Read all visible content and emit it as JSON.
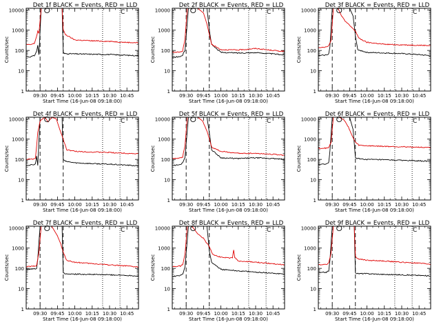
{
  "figure": {
    "xlabel": "Start Time (16-Jun-08 09:18:00)",
    "ylabel": "Counts/sec",
    "x_ticks": [
      "09:30",
      "09:45",
      "10:00",
      "10:15",
      "10:30",
      "10:45"
    ],
    "y_ticks": [
      "1",
      "10",
      "100",
      "1000",
      "10000"
    ],
    "colors": {
      "events": "#000000",
      "lld": "#e00000"
    }
  },
  "chart_data": [
    {
      "type": "line",
      "title": "Det 1f BLACK = Events, RED = LLD",
      "xlabel": "Start Time (16-Jun-08 09:18:00)",
      "ylabel": "Counts/sec",
      "x_range": [
        "09:18",
        "10:55"
      ],
      "y_scale": "log",
      "ylim": [
        1,
        12000
      ],
      "annotations": [
        "O",
        "C"
      ],
      "markers": [
        {
          "time": "09:30",
          "style": "dashed"
        },
        {
          "time": "09:50",
          "style": "dashed"
        },
        {
          "time": "10:24",
          "style": "dotted"
        },
        {
          "time": "10:39",
          "style": "dotted"
        }
      ],
      "series": [
        {
          "name": "Events",
          "x": [
            "09:18",
            "09:21",
            "09:25",
            "09:27",
            "09:28",
            "09:29",
            "09:31",
            "09:35",
            "09:45",
            "09:49",
            "09:50",
            "09:51",
            "10:00",
            "10:15",
            "10:30",
            "10:45",
            "10:55"
          ],
          "values": [
            50,
            48,
            55,
            90,
            180,
            60,
            12000,
            12000,
            12000,
            12000,
            80,
            70,
            68,
            65,
            63,
            58,
            55
          ]
        },
        {
          "name": "LLD",
          "x": [
            "09:18",
            "09:21",
            "09:25",
            "09:27",
            "09:28",
            "09:29",
            "09:31",
            "09:35",
            "09:45",
            "09:49",
            "09:50",
            "09:52",
            "10:00",
            "10:15",
            "10:30",
            "10:45",
            "10:55"
          ],
          "values": [
            200,
            190,
            220,
            500,
            900,
            700,
            12000,
            12000,
            12000,
            12000,
            1000,
            600,
            330,
            300,
            280,
            250,
            240
          ]
        }
      ]
    },
    {
      "type": "line",
      "title": "Det 2f BLACK = Events, RED = LLD",
      "xlabel": "Start Time (16-Jun-08 09:18:00)",
      "ylabel": "Counts/sec",
      "x_range": [
        "09:18",
        "10:55"
      ],
      "y_scale": "log",
      "ylim": [
        1,
        12000
      ],
      "annotations": [
        "O",
        "C"
      ],
      "markers": [
        {
          "time": "09:30",
          "style": "dashed"
        },
        {
          "time": "09:50",
          "style": "dashed"
        },
        {
          "time": "10:24",
          "style": "dotted"
        },
        {
          "time": "10:39",
          "style": "dotted"
        }
      ],
      "series": [
        {
          "name": "Events",
          "x": [
            "09:18",
            "09:25",
            "09:27",
            "09:29",
            "09:32",
            "09:45",
            "09:48",
            "09:50",
            "09:52",
            "10:00",
            "10:15",
            "10:30",
            "10:45",
            "10:55"
          ],
          "values": [
            45,
            50,
            60,
            100,
            12000,
            12000,
            12000,
            1000,
            200,
            80,
            75,
            78,
            68,
            60
          ]
        },
        {
          "name": "LLD",
          "x": [
            "09:18",
            "09:25",
            "09:27",
            "09:29",
            "09:31",
            "09:40",
            "09:45",
            "09:48",
            "09:50",
            "09:52",
            "10:00",
            "10:15",
            "10:30",
            "10:45",
            "10:55"
          ],
          "values": [
            80,
            85,
            90,
            400,
            12000,
            12000,
            7000,
            2000,
            600,
            200,
            110,
            105,
            125,
            100,
            90
          ]
        }
      ]
    },
    {
      "type": "line",
      "title": "Det 3f BLACK = Events, RED = LLD",
      "xlabel": "Start Time (16-Jun-08 09:18:00)",
      "ylabel": "Counts/sec",
      "x_range": [
        "09:18",
        "10:55"
      ],
      "y_scale": "log",
      "ylim": [
        1,
        12000
      ],
      "annotations": [
        "O",
        "C"
      ],
      "markers": [
        {
          "time": "09:30",
          "style": "dashed"
        },
        {
          "time": "09:50",
          "style": "dashed"
        },
        {
          "time": "10:24",
          "style": "dotted"
        },
        {
          "time": "10:39",
          "style": "dotted"
        }
      ],
      "series": [
        {
          "name": "Events",
          "x": [
            "09:18",
            "09:25",
            "09:27",
            "09:28",
            "09:30",
            "09:35",
            "09:45",
            "09:48",
            "09:50",
            "09:52",
            "10:00",
            "10:15",
            "10:30",
            "10:45",
            "10:55"
          ],
          "values": [
            55,
            60,
            70,
            150,
            12000,
            12000,
            12000,
            5000,
            500,
            110,
            80,
            75,
            70,
            62,
            55
          ]
        },
        {
          "name": "LLD",
          "x": [
            "09:18",
            "09:25",
            "09:27",
            "09:29",
            "09:31",
            "09:35",
            "09:38",
            "09:42",
            "09:46",
            "09:50",
            "09:53",
            "10:00",
            "10:15",
            "10:30",
            "10:45",
            "10:55"
          ],
          "values": [
            140,
            150,
            180,
            300,
            12000,
            12000,
            5000,
            2500,
            1500,
            900,
            400,
            250,
            200,
            190,
            180,
            175
          ]
        }
      ]
    },
    {
      "type": "line",
      "title": "Det 4f BLACK = Events, RED = LLD",
      "xlabel": "Start Time (16-Jun-08 09:18:00)",
      "ylabel": "Counts/sec",
      "x_range": [
        "09:18",
        "10:55"
      ],
      "y_scale": "log",
      "ylim": [
        1,
        12000
      ],
      "annotations": [
        "O",
        "C"
      ],
      "markers": [
        {
          "time": "09:30",
          "style": "dashed"
        },
        {
          "time": "09:50",
          "style": "dashed"
        },
        {
          "time": "10:24",
          "style": "dotted"
        },
        {
          "time": "10:39",
          "style": "dotted"
        }
      ],
      "series": [
        {
          "name": "Events",
          "x": [
            "09:18",
            "09:25",
            "09:26",
            "09:27",
            "09:28",
            "09:30",
            "09:45",
            "09:49",
            "09:50",
            "09:52",
            "10:00",
            "10:15",
            "10:30",
            "10:45",
            "10:55"
          ],
          "values": [
            50,
            55,
            60,
            150,
            50,
            12000,
            12000,
            12000,
            100,
            80,
            68,
            62,
            58,
            52,
            48
          ]
        },
        {
          "name": "LLD",
          "x": [
            "09:18",
            "09:24",
            "09:26",
            "09:28",
            "09:30",
            "09:34",
            "09:37",
            "09:40",
            "09:44",
            "09:47",
            "09:50",
            "09:53",
            "10:00",
            "10:15",
            "10:30",
            "10:45",
            "10:55"
          ],
          "values": [
            100,
            105,
            110,
            2000,
            8000,
            12000,
            7000,
            12000,
            10000,
            3000,
            1000,
            300,
            250,
            230,
            220,
            200,
            190
          ]
        }
      ]
    },
    {
      "type": "line",
      "title": "Det 5f BLACK = Events, RED = LLD",
      "xlabel": "Start Time (16-Jun-08 09:18:00)",
      "ylabel": "Counts/sec",
      "x_range": [
        "09:18",
        "10:55"
      ],
      "y_scale": "log",
      "ylim": [
        1,
        12000
      ],
      "annotations": [
        "O",
        "C"
      ],
      "markers": [
        {
          "time": "09:30",
          "style": "dashed"
        },
        {
          "time": "09:50",
          "style": "dashed"
        },
        {
          "time": "10:24",
          "style": "dotted"
        },
        {
          "time": "10:39",
          "style": "dotted"
        }
      ],
      "series": [
        {
          "name": "Events",
          "x": [
            "09:18",
            "09:25",
            "09:27",
            "09:29",
            "09:32",
            "09:45",
            "09:48",
            "09:50",
            "09:52",
            "10:00",
            "10:15",
            "10:30",
            "10:45",
            "10:55"
          ],
          "values": [
            50,
            55,
            70,
            130,
            12000,
            12000,
            12000,
            2000,
            300,
            120,
            110,
            120,
            110,
            100
          ]
        },
        {
          "name": "LLD",
          "x": [
            "09:18",
            "09:25",
            "09:27",
            "09:29",
            "09:31",
            "09:40",
            "09:44",
            "09:48",
            "09:50",
            "09:52",
            "10:00",
            "10:15",
            "10:30",
            "10:45",
            "10:55"
          ],
          "values": [
            110,
            120,
            130,
            500,
            12000,
            12000,
            8000,
            2500,
            1000,
            400,
            250,
            200,
            200,
            180,
            160
          ]
        }
      ]
    },
    {
      "type": "line",
      "title": "Det 6f BLACK = Events, RED = LLD",
      "xlabel": "Start Time (16-Jun-08 09:18:00)",
      "ylabel": "Counts/sec",
      "x_range": [
        "09:18",
        "10:55"
      ],
      "y_scale": "log",
      "ylim": [
        1,
        12000
      ],
      "annotations": [
        "O",
        "C"
      ],
      "markers": [
        {
          "time": "09:30",
          "style": "dashed"
        },
        {
          "time": "09:50",
          "style": "dashed"
        },
        {
          "time": "10:24",
          "style": "dotted"
        },
        {
          "time": "10:39",
          "style": "dotted"
        }
      ],
      "series": [
        {
          "name": "Events",
          "x": [
            "09:18",
            "09:25",
            "09:27",
            "09:28",
            "09:30",
            "09:35",
            "09:45",
            "09:48",
            "09:50",
            "09:52",
            "10:00",
            "10:15",
            "10:30",
            "10:45",
            "10:55"
          ],
          "values": [
            55,
            60,
            70,
            250,
            12000,
            12000,
            12000,
            3000,
            120,
            110,
            100,
            95,
            90,
            85,
            80
          ]
        },
        {
          "name": "LLD",
          "x": [
            "09:18",
            "09:25",
            "09:27",
            "09:29",
            "09:31",
            "09:36",
            "09:40",
            "09:44",
            "09:47",
            "09:50",
            "09:53",
            "10:00",
            "10:15",
            "10:30",
            "10:45",
            "10:55"
          ],
          "values": [
            350,
            360,
            380,
            700,
            12000,
            12000,
            9000,
            4000,
            1500,
            700,
            500,
            470,
            440,
            420,
            400,
            370
          ]
        }
      ]
    },
    {
      "type": "line",
      "title": "Det 7f BLACK = Events, RED = LLD",
      "xlabel": "Start Time (16-Jun-08 09:18:00)",
      "ylabel": "Counts/sec",
      "x_range": [
        "09:18",
        "10:55"
      ],
      "y_scale": "log",
      "ylim": [
        1,
        12000
      ],
      "annotations": [
        "O",
        "C"
      ],
      "markers": [
        {
          "time": "09:30",
          "style": "dashed"
        },
        {
          "time": "09:50",
          "style": "dashed"
        },
        {
          "time": "10:24",
          "style": "dotted"
        },
        {
          "time": "10:39",
          "style": "dotted"
        }
      ],
      "series": [
        {
          "name": "Events",
          "x": [
            "09:18",
            "09:25",
            "09:27",
            "09:28",
            "09:30",
            "09:45",
            "09:49",
            "09:50",
            "09:52",
            "10:00",
            "10:15",
            "10:30",
            "10:45",
            "10:55"
          ],
          "values": [
            90,
            95,
            100,
            300,
            12000,
            12000,
            12000,
            60,
            55,
            52,
            50,
            48,
            45,
            42
          ]
        },
        {
          "name": "LLD",
          "x": [
            "09:18",
            "09:24",
            "09:27",
            "09:29",
            "09:31",
            "09:40",
            "09:45",
            "09:48",
            "09:50",
            "09:53",
            "10:00",
            "10:15",
            "10:30",
            "10:45",
            "10:55"
          ],
          "values": [
            120,
            125,
            140,
            600,
            12000,
            12000,
            4000,
            1500,
            600,
            250,
            200,
            170,
            150,
            130,
            115
          ]
        }
      ]
    },
    {
      "type": "line",
      "title": "Det 8f BLACK = Events, RED = LLD",
      "xlabel": "Start Time (16-Jun-08 09:18:00)",
      "ylabel": "Counts/sec",
      "x_range": [
        "09:18",
        "10:55"
      ],
      "y_scale": "log",
      "ylim": [
        1,
        12000
      ],
      "annotations": [
        "O",
        "C"
      ],
      "markers": [
        {
          "time": "09:30",
          "style": "dashed"
        },
        {
          "time": "09:50",
          "style": "dashed"
        },
        {
          "time": "10:24",
          "style": "dotted"
        },
        {
          "time": "10:39",
          "style": "dotted"
        }
      ],
      "series": [
        {
          "name": "Events",
          "x": [
            "09:18",
            "09:25",
            "09:27",
            "09:29",
            "09:32",
            "09:45",
            "09:48",
            "09:50",
            "09:52",
            "10:00",
            "10:15",
            "10:30",
            "10:45",
            "10:55"
          ],
          "values": [
            40,
            45,
            50,
            120,
            12000,
            12000,
            12000,
            700,
            200,
            90,
            75,
            65,
            58,
            52
          ]
        },
        {
          "name": "LLD",
          "x": [
            "09:18",
            "09:25",
            "09:27",
            "09:29",
            "09:31",
            "09:35",
            "09:40",
            "09:45",
            "09:50",
            "09:53",
            "10:00",
            "10:10",
            "10:11",
            "10:12",
            "10:15",
            "10:30",
            "10:45",
            "10:55"
          ],
          "values": [
            120,
            130,
            150,
            500,
            12000,
            12000,
            5000,
            3000,
            1200,
            500,
            350,
            320,
            800,
            350,
            230,
            200,
            170,
            150
          ]
        }
      ]
    },
    {
      "type": "line",
      "title": "Det 9f BLACK = Events, RED = LLD",
      "xlabel": "Start Time (16-Jun-08 09:18:00)",
      "ylabel": "Counts/sec",
      "x_range": [
        "09:18",
        "10:55"
      ],
      "y_scale": "log",
      "ylim": [
        1,
        12000
      ],
      "annotations": [
        "O",
        "C"
      ],
      "markers": [
        {
          "time": "09:30",
          "style": "dashed"
        },
        {
          "time": "09:50",
          "style": "dashed"
        },
        {
          "time": "10:24",
          "style": "dotted"
        },
        {
          "time": "10:39",
          "style": "dotted"
        }
      ],
      "series": [
        {
          "name": "Events",
          "x": [
            "09:18",
            "09:25",
            "09:27",
            "09:28",
            "09:30",
            "09:35",
            "09:45",
            "09:49",
            "09:50",
            "09:52",
            "10:00",
            "10:15",
            "10:30",
            "10:45",
            "10:55"
          ],
          "values": [
            60,
            65,
            75,
            250,
            12000,
            12000,
            12000,
            12000,
            60,
            55,
            55,
            50,
            48,
            45,
            42
          ]
        },
        {
          "name": "LLD",
          "x": [
            "09:18",
            "09:25",
            "09:27",
            "09:29",
            "09:31",
            "09:45",
            "09:49",
            "09:50",
            "09:52",
            "10:00",
            "10:15",
            "10:30",
            "10:45",
            "10:55"
          ],
          "values": [
            150,
            160,
            180,
            600,
            12000,
            12000,
            12000,
            400,
            300,
            250,
            230,
            200,
            180,
            160
          ]
        }
      ]
    }
  ]
}
